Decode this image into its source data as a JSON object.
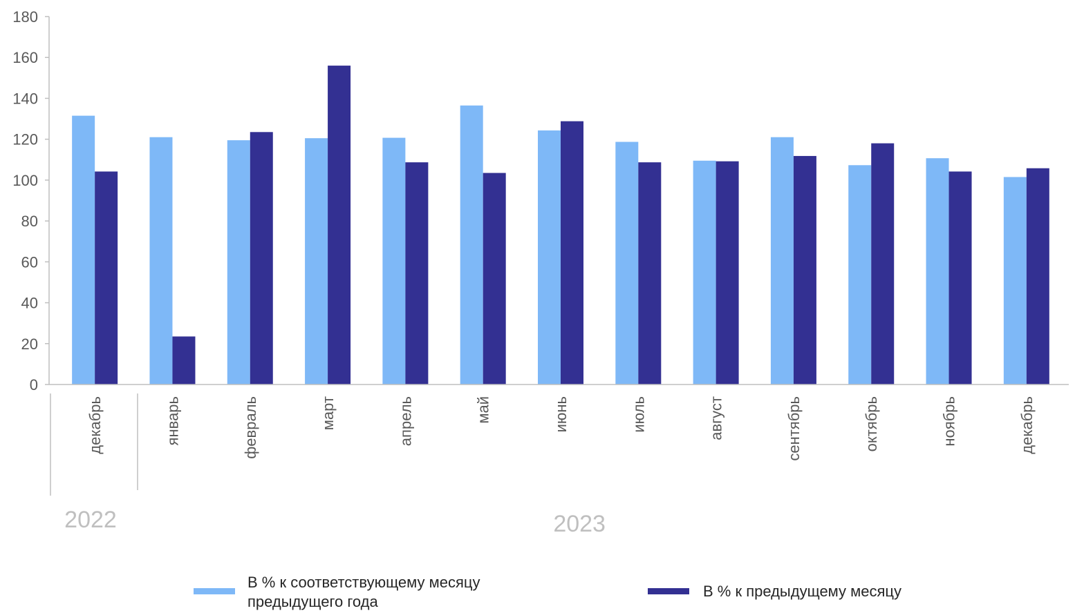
{
  "chart_data": {
    "type": "bar",
    "categories": [
      "декабрь",
      "январь",
      "февраль",
      "март",
      "апрель",
      "май",
      "июнь",
      "июль",
      "август",
      "сентябрь",
      "октябрь",
      "ноябрь",
      "декабрь"
    ],
    "groups": [
      {
        "label": "2022",
        "categories": [
          "декабрь"
        ]
      },
      {
        "label": "2023",
        "categories": [
          "январь",
          "февраль",
          "март",
          "апрель",
          "май",
          "июнь",
          "июль",
          "август",
          "сентябрь",
          "октябрь",
          "ноябрь",
          "декабрь"
        ]
      }
    ],
    "series": [
      {
        "name": "В % к соответствующему месяцу предыдущего года",
        "color": "#7eb8f7",
        "values": [
          131.5,
          121,
          119.5,
          120.5,
          120.7,
          136.5,
          124.3,
          118.7,
          109.5,
          121,
          107.3,
          110.7,
          101.5
        ]
      },
      {
        "name": "В % к предыдущему месяцу",
        "color": "#333092",
        "values": [
          104.2,
          23.5,
          123.5,
          156,
          108.7,
          103.5,
          128.8,
          108.7,
          109.2,
          111.8,
          118,
          104.2,
          105.8
        ]
      }
    ],
    "yticks": [
      0,
      20,
      40,
      60,
      80,
      100,
      120,
      140,
      160,
      180
    ],
    "ylim": [
      0,
      180
    ],
    "grid": false,
    "legend_position": "bottom"
  }
}
